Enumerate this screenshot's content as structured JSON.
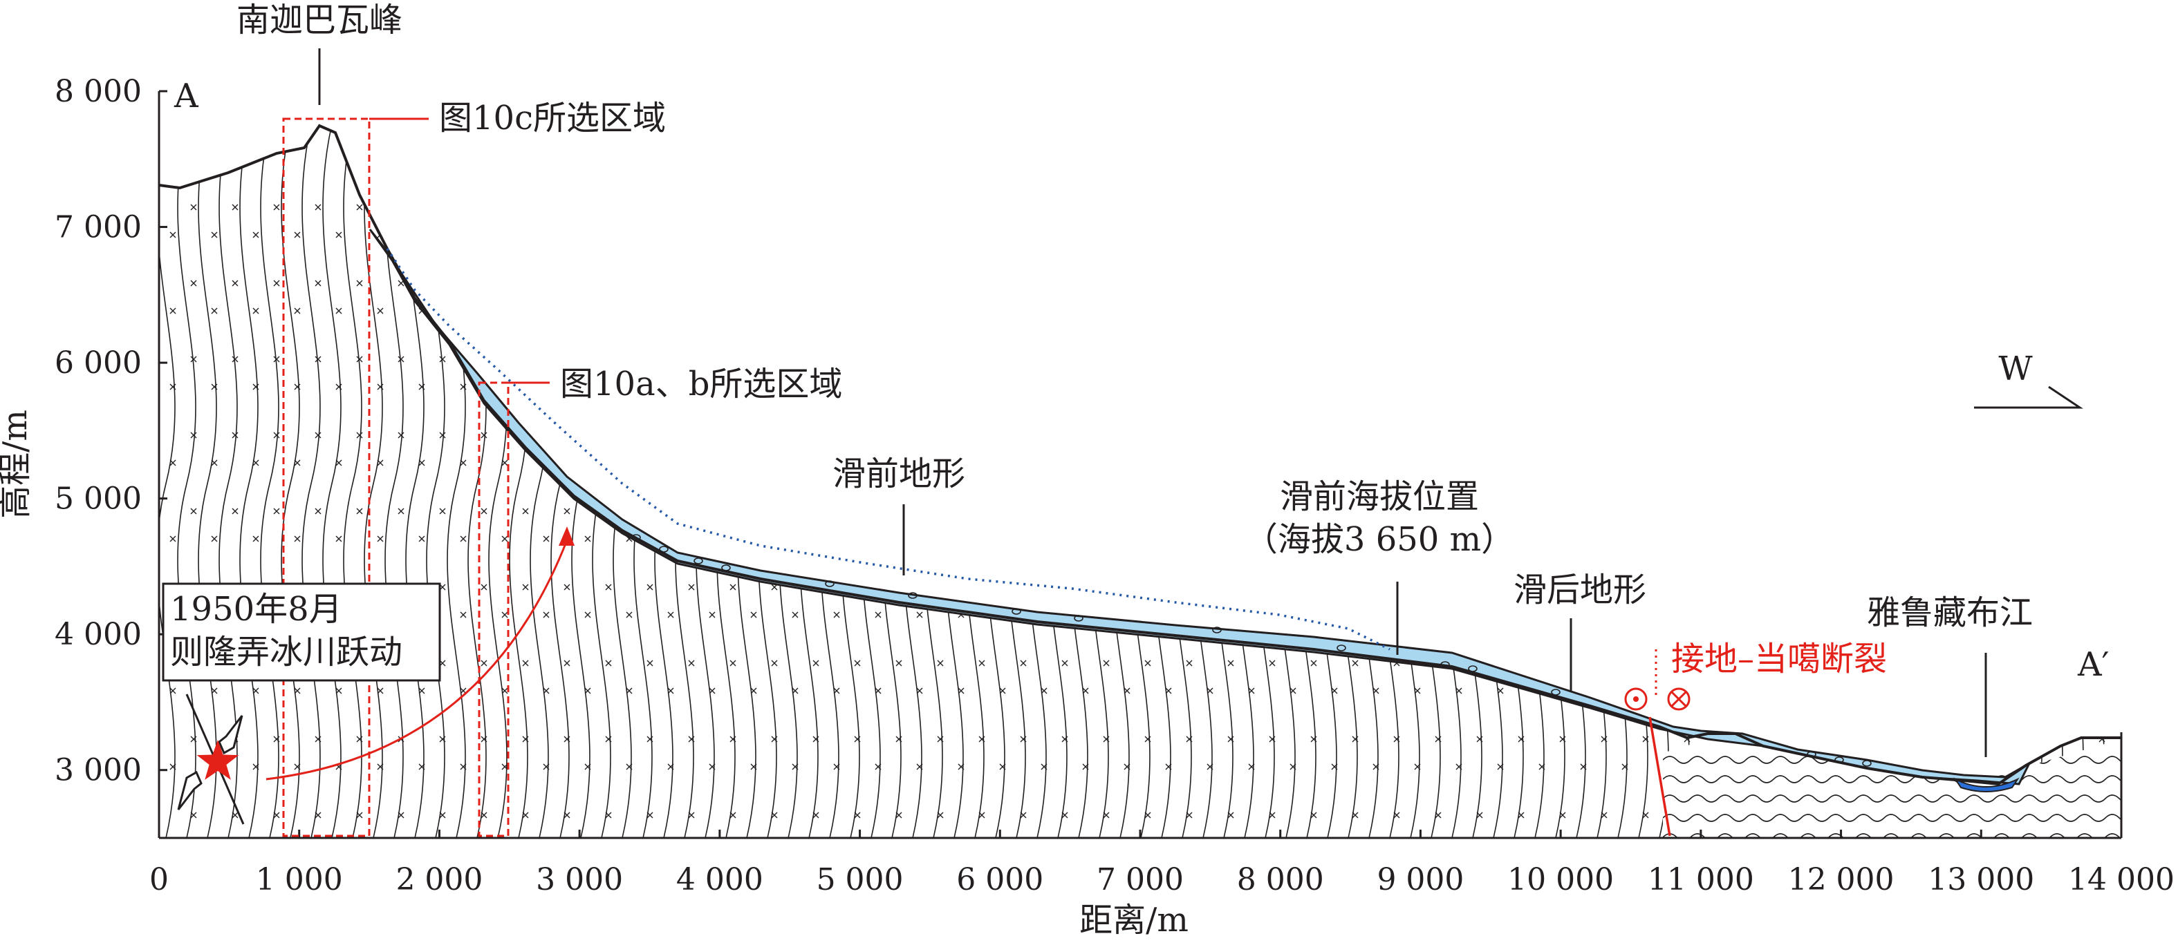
{
  "figure": {
    "xaxis": {
      "label": "距离/m",
      "range": [
        0,
        14000
      ],
      "ticks": [
        0,
        1000,
        2000,
        3000,
        4000,
        5000,
        6000,
        7000,
        8000,
        9000,
        10000,
        11000,
        12000,
        13000,
        14000
      ],
      "tick_labels": [
        "0",
        "1 000",
        "2 000",
        "3 000",
        "4 000",
        "5 000",
        "6 000",
        "7 000",
        "8 000",
        "9 000",
        "10 000",
        "11 000",
        "12 000",
        "13 000",
        "14 000"
      ]
    },
    "yaxis": {
      "label": "高程/m",
      "range": [
        2500,
        8000
      ],
      "ticks": [
        3000,
        4000,
        5000,
        6000,
        7000,
        8000
      ],
      "tick_labels": [
        "3 000",
        "4 000",
        "5 000",
        "6 000",
        "7 000",
        "8 000"
      ]
    },
    "profile_ends": {
      "start": "A",
      "end": "A′"
    },
    "labels": {
      "peak": "南迦巴瓦峰",
      "region_c": "图10c所选区域",
      "region_ab": "图10a、b所选区域",
      "pre_slide_terrain": "滑前地形",
      "pre_slide_elevation_line1": "滑前海拔位置",
      "pre_slide_elevation_line2": "（海拔3 650 m）",
      "post_slide_terrain": "滑后地形",
      "river": "雅鲁藏布江",
      "fault": "接地–当噶断裂",
      "event_line1": "1950年8月",
      "event_line2": "则隆弄冰川跃动",
      "compass": "W"
    },
    "colors": {
      "glacier_fill": "#a9d7ef",
      "river_fill": "#2a6fd6",
      "annotation_red": "#e32119",
      "pre_slide_line": "#2559a8",
      "ink": "#231f20"
    }
  }
}
